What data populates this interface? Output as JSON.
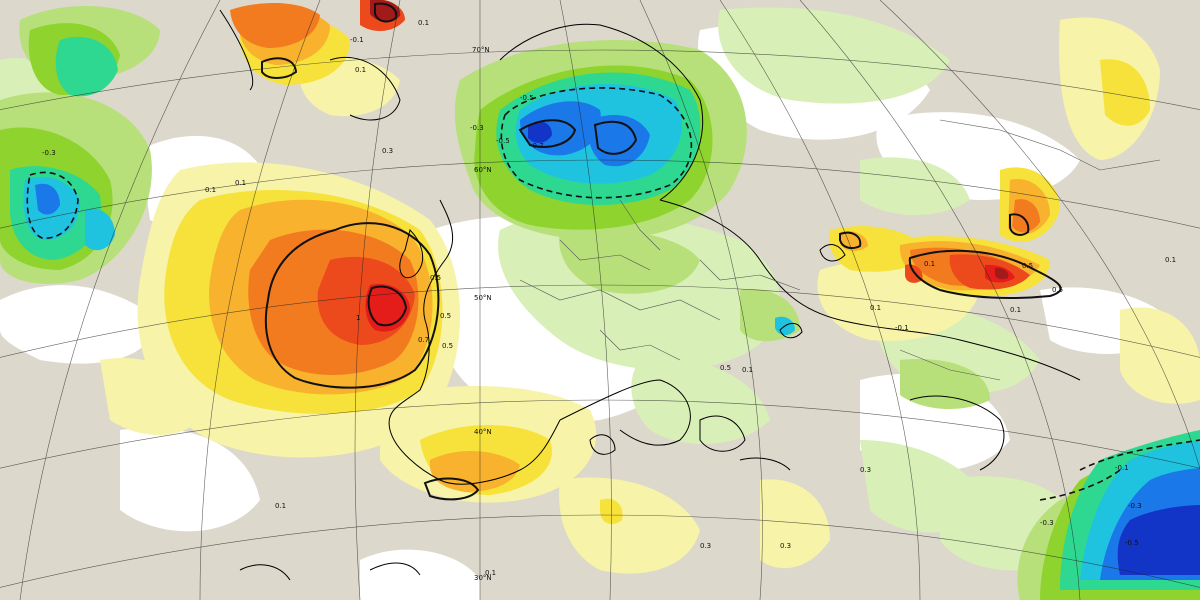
{
  "map": {
    "contour_labels": [
      {
        "id": "c1",
        "text": "0.1"
      },
      {
        "id": "c2",
        "text": "-0.1"
      },
      {
        "id": "c3",
        "text": "0.1"
      },
      {
        "id": "c4",
        "text": "-0.3"
      },
      {
        "id": "c5",
        "text": "0.1"
      },
      {
        "id": "c6",
        "text": "0.1"
      },
      {
        "id": "c7",
        "text": "-0.3"
      },
      {
        "id": "c8",
        "text": "-0.5"
      },
      {
        "id": "c9",
        "text": "-0.5"
      },
      {
        "id": "c10",
        "text": "-0.7"
      },
      {
        "id": "c11",
        "text": "0.3"
      },
      {
        "id": "c12",
        "text": "0.5"
      },
      {
        "id": "c13",
        "text": "0.7"
      },
      {
        "id": "c14",
        "text": "1"
      },
      {
        "id": "c15",
        "text": "0.5"
      },
      {
        "id": "c16",
        "text": "0.5"
      },
      {
        "id": "c17",
        "text": "0.1"
      },
      {
        "id": "c18",
        "text": "0.5"
      },
      {
        "id": "c19",
        "text": "0.1"
      },
      {
        "id": "c20",
        "text": "-0.1"
      },
      {
        "id": "c21",
        "text": "0.1"
      },
      {
        "id": "c22",
        "text": "0.3"
      },
      {
        "id": "c23",
        "text": "0.3"
      },
      {
        "id": "c24",
        "text": "0.3"
      },
      {
        "id": "c25",
        "text": "0.1"
      },
      {
        "id": "c26",
        "text": "-0.1"
      },
      {
        "id": "c27",
        "text": "-0.3"
      },
      {
        "id": "c28",
        "text": "-0.5"
      },
      {
        "id": "c29",
        "text": "-0.3"
      },
      {
        "id": "c30",
        "text": "0.1"
      },
      {
        "id": "c31",
        "text": "0.5"
      },
      {
        "id": "c32",
        "text": "0.5"
      },
      {
        "id": "c33",
        "text": "0.1"
      },
      {
        "id": "c34",
        "text": "0.1"
      }
    ],
    "lat_labels": [
      {
        "id": "l70",
        "text": "70°N"
      },
      {
        "id": "l60",
        "text": "60°N"
      },
      {
        "id": "l50",
        "text": "50°N"
      },
      {
        "id": "l40",
        "text": "40°N"
      },
      {
        "id": "l30",
        "text": "30°N"
      }
    ],
    "colors": {
      "background": "#ddd8cc",
      "white": "#ffffff",
      "pale_yellow": "#f7f3a8",
      "yellow": "#f6e23a",
      "orange_light": "#f8b22e",
      "orange": "#f27b20",
      "red_orange": "#ec4a1c",
      "red": "#e41c1a",
      "dark_red": "#a31a1a",
      "pale_green": "#d9efb8",
      "light_green": "#b8e07a",
      "green": "#8ed32e",
      "teal": "#2fd890",
      "cyan": "#1fc3e0",
      "blue": "#1a78e8",
      "dark_blue": "#1235c8"
    }
  }
}
